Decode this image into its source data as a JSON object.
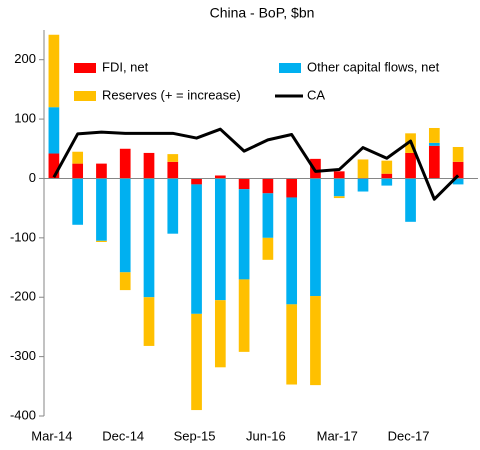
{
  "chart_data": {
    "type": "bar",
    "stacked": true,
    "title": "China - BoP, $bn",
    "categories": [
      "Mar-14",
      null,
      null,
      "Dec-14",
      null,
      null,
      "Sep-15",
      null,
      null,
      "Jun-16",
      null,
      null,
      "Mar-17",
      null,
      null,
      "Dec-17",
      null,
      null
    ],
    "series": [
      {
        "name": "FDI, net",
        "color": "#ff0000",
        "values": [
          42,
          25,
          25,
          50,
          43,
          28,
          -10,
          5,
          -18,
          -25,
          -32,
          33,
          12,
          0,
          8,
          43,
          55,
          28
        ]
      },
      {
        "name": "Other capital flows, net",
        "color": "#00b0f0",
        "values": [
          78,
          -78,
          -105,
          -158,
          -200,
          -93,
          -218,
          -205,
          -152,
          -75,
          -180,
          -198,
          -30,
          -22,
          -12,
          -73,
          5,
          -10
        ]
      },
      {
        "name": "Reserves (+ = increase)",
        "color": "#ffc000",
        "values": [
          122,
          20,
          -2,
          -30,
          -82,
          13,
          -162,
          -113,
          -122,
          -37,
          -135,
          -150,
          -3,
          32,
          22,
          33,
          25,
          25
        ]
      },
      {
        "name": "CA",
        "color": "#000000",
        "type": "line",
        "values": [
          2,
          75,
          78,
          76,
          76,
          76,
          68,
          83,
          46,
          65,
          74,
          12,
          15,
          52,
          34,
          63,
          -35,
          5
        ]
      }
    ],
    "ylim": [
      -400,
      250
    ],
    "yticks": [
      -400,
      -300,
      -200,
      -100,
      0,
      100,
      200
    ],
    "grid": false
  }
}
